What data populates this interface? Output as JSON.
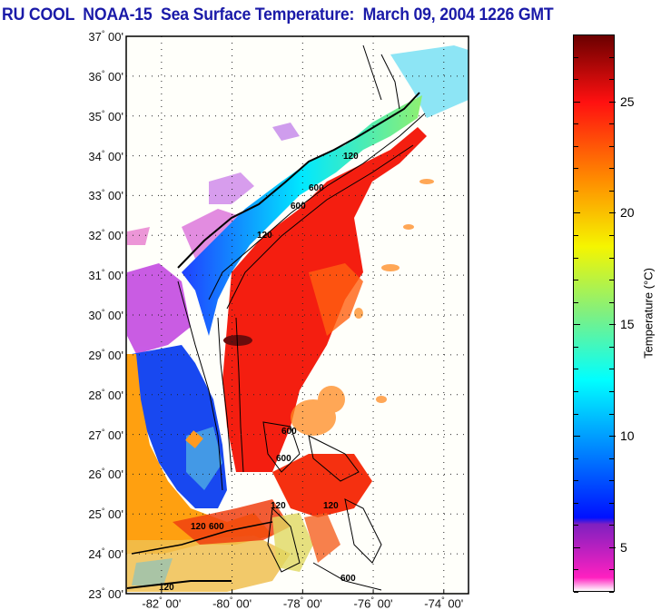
{
  "title": "RU COOL  NOAA-15  Sea Surface Temperature:  March 09, 2004 1226 GMT",
  "map": {
    "region": "US Southeast coast / Florida / Bahamas",
    "lat_ticks": [
      {
        "deg": "37",
        "min": "00'"
      },
      {
        "deg": "36",
        "min": "00'"
      },
      {
        "deg": "35",
        "min": "00'"
      },
      {
        "deg": "34",
        "min": "00'"
      },
      {
        "deg": "33",
        "min": "00'"
      },
      {
        "deg": "32",
        "min": "00'"
      },
      {
        "deg": "31",
        "min": "00'"
      },
      {
        "deg": "30",
        "min": "00'"
      },
      {
        "deg": "29",
        "min": "00'"
      },
      {
        "deg": "28",
        "min": "00'"
      },
      {
        "deg": "27",
        "min": "00'"
      },
      {
        "deg": "26",
        "min": "00'"
      },
      {
        "deg": "25",
        "min": "00'"
      },
      {
        "deg": "24",
        "min": "00'"
      },
      {
        "deg": "23",
        "min": "00'"
      }
    ],
    "lon_ticks": [
      {
        "deg": "-82",
        "min": "00'"
      },
      {
        "deg": "-80",
        "min": "00'"
      },
      {
        "deg": "-78",
        "min": "00'"
      },
      {
        "deg": "-76",
        "min": "00'"
      },
      {
        "deg": "-74",
        "min": "00'"
      }
    ],
    "lat_range": [
      23,
      37
    ],
    "lon_range": [
      -83,
      -73.3
    ],
    "contour_labels": [
      "120",
      "600",
      "120",
      "600",
      "120",
      "600",
      "120",
      "600",
      "600",
      "120",
      "120",
      "600"
    ]
  },
  "colorbar": {
    "label": "Temperature (°C)",
    "range": [
      3,
      28
    ],
    "ticks": [
      "25",
      "20",
      "15",
      "10",
      "5"
    ],
    "tick_values": [
      25,
      20,
      15,
      10,
      5
    ],
    "colors": {
      "top": "#6b0000",
      "red": "#ff1010",
      "orange": "#ff8c00",
      "yellow": "#f5f500",
      "green": "#80f080",
      "cyan": "#00ffff",
      "blue": "#0010ff",
      "purple": "#8020c0",
      "pink": "#ff20c0"
    }
  }
}
